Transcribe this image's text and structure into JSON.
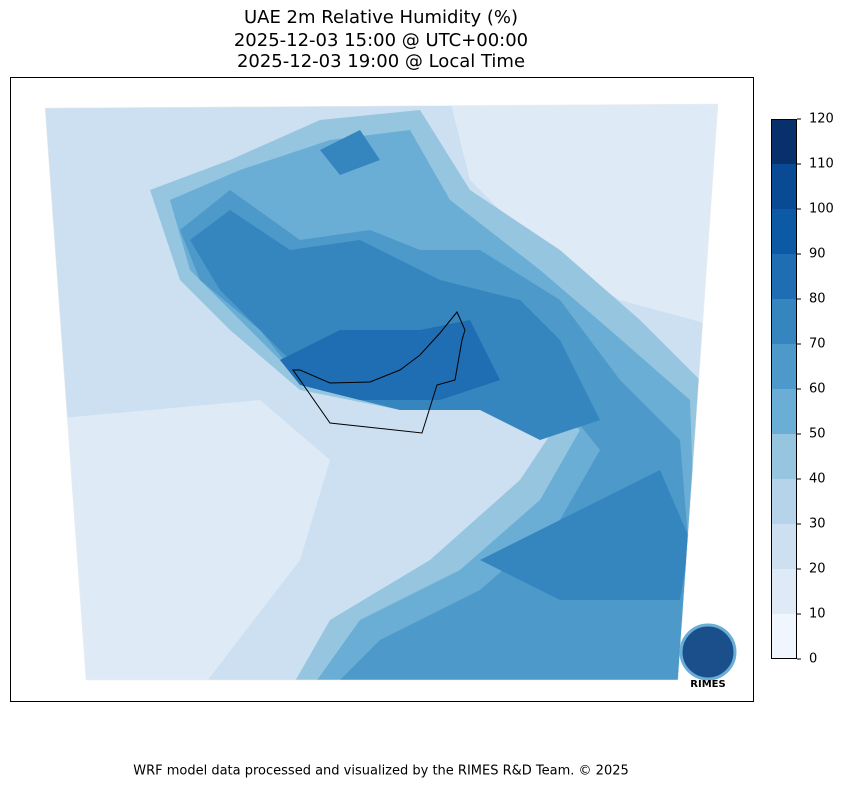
{
  "map": {
    "title": [
      "UAE 2m Relative Humidity (%)",
      "2025-12-03 15:00 @ UTC+00:00",
      "2025-12-03 19:00 @ Local Time"
    ],
    "colorbar": {
      "lim": [
        0,
        120
      ],
      "ticks": [
        0,
        10,
        20,
        30,
        40,
        50,
        60,
        70,
        80,
        90,
        100,
        110,
        120
      ],
      "colors": [
        "#f0f6fd",
        "#deebf7",
        "#cde0f1",
        "#b5d4e9",
        "#95c5df",
        "#6aaed6",
        "#4d99ca",
        "#3585bf",
        "#1f6eb3",
        "#0c5aa5",
        "#084b94",
        "#08306b"
      ]
    },
    "logo": "RIMES",
    "footer": "WRF model data processed and visualized by the RIMES R&D Team. © 2025"
  }
}
